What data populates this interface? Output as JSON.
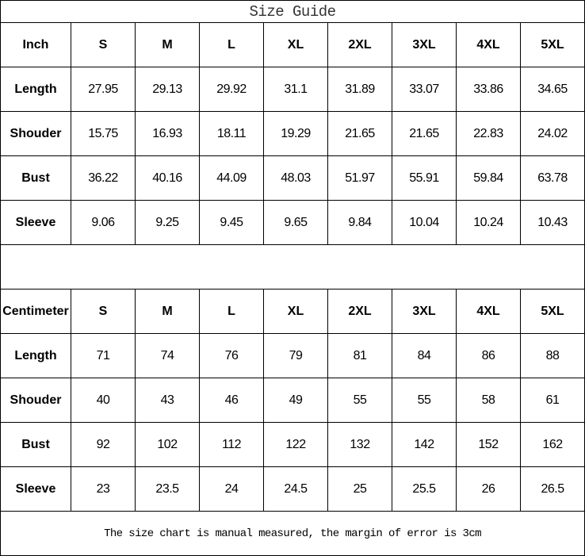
{
  "title": "Size Guide",
  "sizes": [
    "S",
    "M",
    "L",
    "XL",
    "2XL",
    "3XL",
    "4XL",
    "5XL"
  ],
  "tables": [
    {
      "unit": "Inch",
      "rows": [
        {
          "label": "Length",
          "values": [
            "27.95",
            "29.13",
            "29.92",
            "31.1",
            "31.89",
            "33.07",
            "33.86",
            "34.65"
          ]
        },
        {
          "label": "Shouder",
          "values": [
            "15.75",
            "16.93",
            "18.11",
            "19.29",
            "21.65",
            "21.65",
            "22.83",
            "24.02"
          ]
        },
        {
          "label": "Bust",
          "values": [
            "36.22",
            "40.16",
            "44.09",
            "48.03",
            "51.97",
            "55.91",
            "59.84",
            "63.78"
          ]
        },
        {
          "label": "Sleeve",
          "values": [
            "9.06",
            "9.25",
            "9.45",
            "9.65",
            "9.84",
            "10.04",
            "10.24",
            "10.43"
          ]
        }
      ]
    },
    {
      "unit": "Centimeter",
      "rows": [
        {
          "label": "Length",
          "values": [
            "71",
            "74",
            "76",
            "79",
            "81",
            "84",
            "86",
            "88"
          ]
        },
        {
          "label": "Shouder",
          "values": [
            "40",
            "43",
            "46",
            "49",
            "55",
            "55",
            "58",
            "61"
          ]
        },
        {
          "label": "Bust",
          "values": [
            "92",
            "102",
            "112",
            "122",
            "132",
            "142",
            "152",
            "162"
          ]
        },
        {
          "label": "Sleeve",
          "values": [
            "23",
            "23.5",
            "24",
            "24.5",
            "25",
            "25.5",
            "26",
            "26.5"
          ]
        }
      ]
    }
  ],
  "footer": "The size chart is manual measured, the margin of error is 3cm"
}
